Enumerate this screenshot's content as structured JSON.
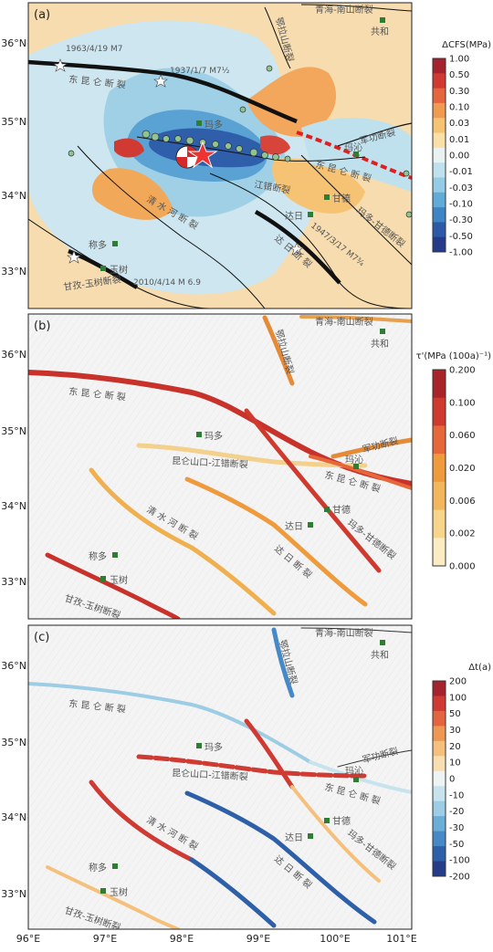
{
  "panels": [
    {
      "label": "(a)",
      "colorbar": {
        "title": "ΔCFS(MPa)",
        "ticks": [
          "1.00",
          "0.50",
          "0.30",
          "0.10",
          "0.03",
          "0.01",
          "0.00",
          "-0.01",
          "-0.03",
          "-0.10",
          "-0.30",
          "-0.50",
          "-1.00"
        ],
        "colors": [
          "#a5232d",
          "#d03a33",
          "#e5653f",
          "#f19b52",
          "#f6c374",
          "#fadfa6",
          "#e9f1f1",
          "#bfe1ee",
          "#94cbe6",
          "#61abd8",
          "#3f85c6",
          "#2c5aa8",
          "#243a8a"
        ]
      },
      "labels": {
        "qinghai_nanshan": "青海-南山断裂",
        "gonghe": "共和",
        "elashan": "鄂拉山断裂",
        "dongkunlun": "东 昆 仑 断 裂",
        "eq1963": "1963/4/19 M7",
        "eq1937": "1937/1/7 M7½",
        "maduo": "玛多",
        "junggong": "军功断裂",
        "maqin": "玛沁",
        "dongkunlun_e": "东 昆 仑 断 裂",
        "jiangcuo": "江错断裂",
        "gande": "甘德",
        "dari": "达日",
        "qingshuihe": "清 水 河 断 裂",
        "eq1947": "1947/3/17 M7¾",
        "maduo_gande": "玛多-甘德断裂",
        "dari_fault": "达 日 断 裂",
        "chenduo": "称多",
        "yushu": "玉树",
        "eq2010": "2010/4/14 M 6.9",
        "ganzi_yushu": "甘孜-玉树断裂"
      }
    },
    {
      "label": "(b)",
      "colorbar": {
        "title": "τ'(MPa (100a)⁻¹)",
        "ticks": [
          "0.200",
          "0.100",
          "0.060",
          "0.020",
          "0.006",
          "0.002",
          "0.000"
        ],
        "colors": [
          "#a8232a",
          "#cf3a2e",
          "#e6673a",
          "#ef9a3c",
          "#f2b75c",
          "#f7d58a",
          "#fbecc4"
        ]
      },
      "labels": {
        "qinghai_nanshan": "青海-南山断裂",
        "gonghe": "共和",
        "elashan": "鄂拉山断裂",
        "dongkunlun": "东 昆 仑 断 裂",
        "maduo": "玛多",
        "junggong": "军功断裂",
        "maqin": "玛沁",
        "kunlunshankou": "昆仑山口-江错断裂",
        "dongkunlun_e": "东 昆 仑 断 裂",
        "gande": "甘德",
        "dari": "达日",
        "qingshuihe": "清 水 河 断 裂",
        "dari_fault": "达 日 断 裂",
        "maduo_gande": "玛多-甘德断裂",
        "chenduo": "称多",
        "yushu": "玉树",
        "ganzi_yushu": "甘孜-玉树断裂"
      }
    },
    {
      "label": "(c)",
      "colorbar": {
        "title": "Δt(a)",
        "ticks": [
          "200",
          "100",
          "50",
          "30",
          "20",
          "10",
          "0",
          "-10",
          "-20",
          "-30",
          "-50",
          "-100",
          "-200"
        ],
        "colors": [
          "#a5232d",
          "#cf3a33",
          "#e3653f",
          "#ee9752",
          "#f5c07c",
          "#f8dfb1",
          "#eef4f4",
          "#c6e3ee",
          "#9dcde5",
          "#6aaed8",
          "#4789c7",
          "#2e5fa9",
          "#253c8a"
        ]
      },
      "labels": {
        "qinghai_nanshan": "青海-南山断裂",
        "gonghe": "共和",
        "elashan": "鄂拉山断裂",
        "dongkunlun": "东 昆 仑 断 裂",
        "maduo": "玛多",
        "junggong": "军功断裂",
        "maqin": "玛沁",
        "kunlunshankou": "昆仑山口-江错断裂",
        "dongkunlun_e": "东 昆 仑 断 裂",
        "gande": "甘德",
        "dari": "达日",
        "qingshuihe": "清 水 河 断 裂",
        "dari_fault": "达 日 断 裂",
        "maduo_gande": "玛多-甘德断裂",
        "chenduo": "称多",
        "yushu": "玉树",
        "ganzi_yushu": "甘孜-玉树断裂"
      }
    }
  ],
  "axes": {
    "lat_ticks": [
      "36°N",
      "35°N",
      "34°N",
      "33°N"
    ],
    "lon_ticks": [
      "96°E",
      "97°E",
      "98°E",
      "99°E",
      "100°E",
      "101°E"
    ]
  }
}
